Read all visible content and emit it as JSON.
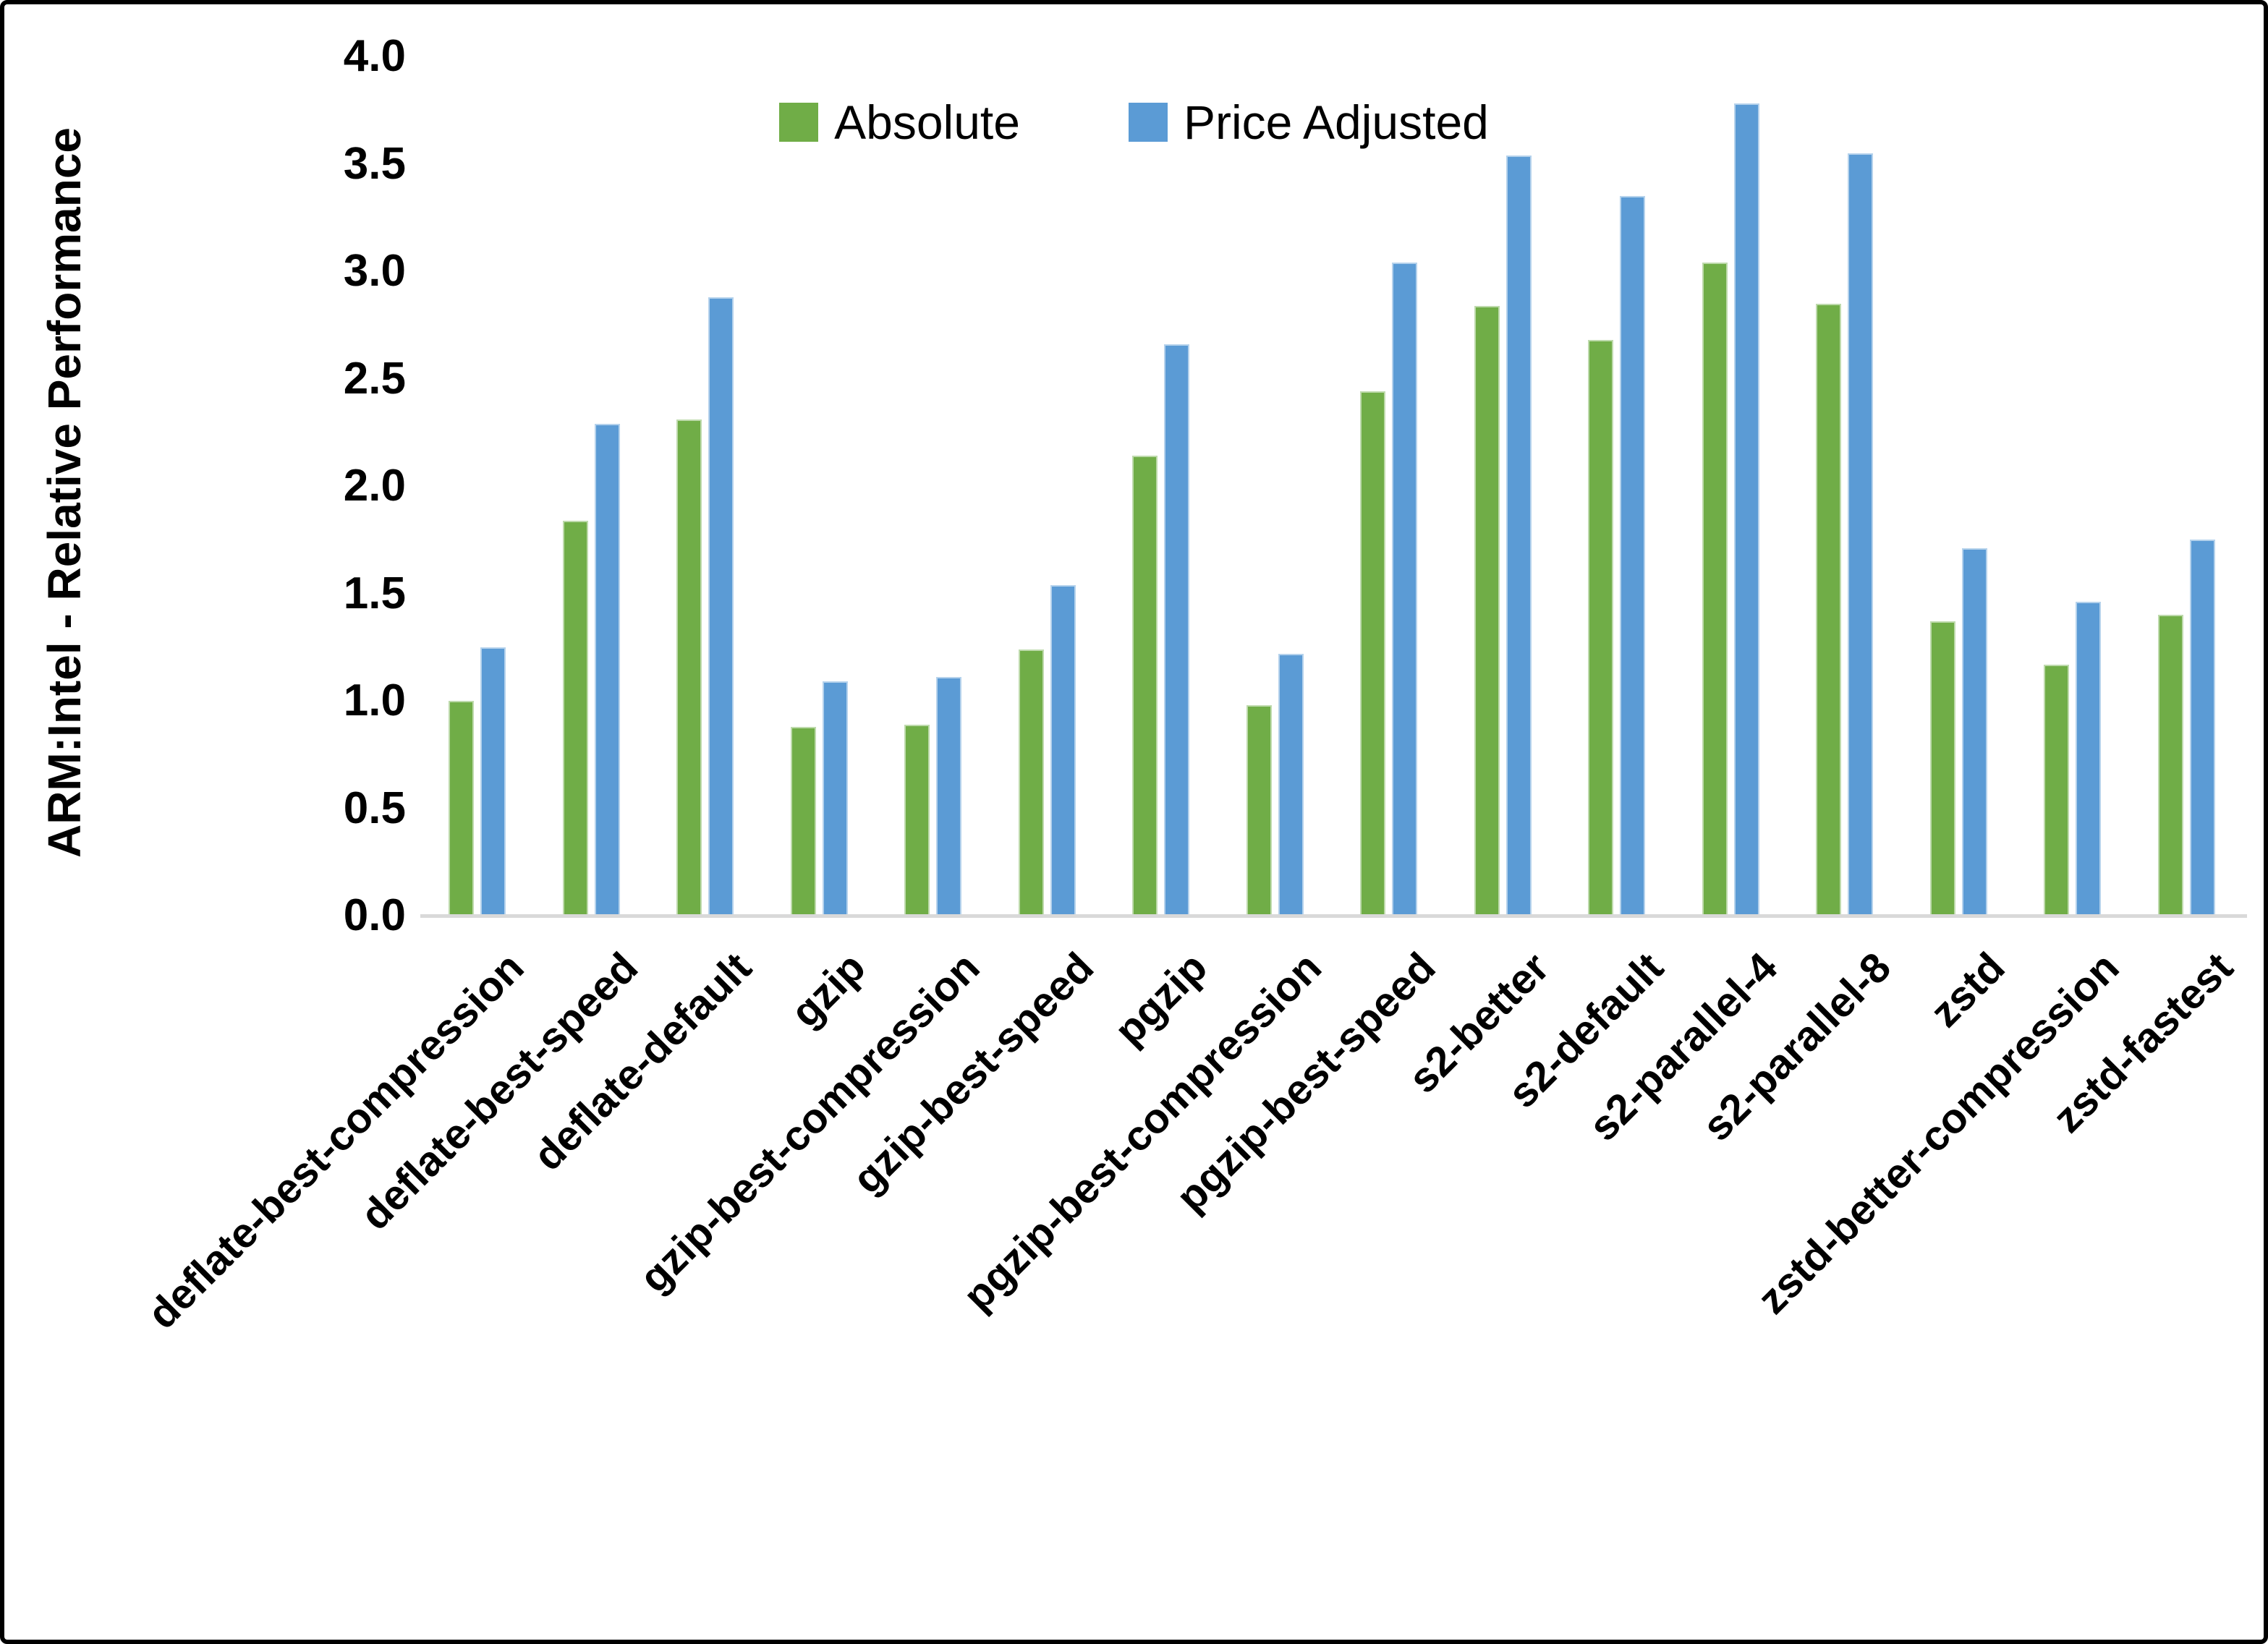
{
  "chart_data": {
    "type": "bar",
    "title": "",
    "ylabel": "ARM:Intel - Relative Performance",
    "xlabel": "",
    "ylim": [
      0,
      4
    ],
    "ytick_step": 0.5,
    "grid": false,
    "legend_position": "top-center",
    "axis_line_color": "#d9d9d9",
    "categories": [
      "deflate-best-compression",
      "deflate-best-speed",
      "deflate-default",
      "gzip",
      "gzip-best-compression",
      "gzip-best-speed",
      "pgzip",
      "pgzip-best-compression",
      "pgzip-best-speed",
      "s2-better",
      "s2-default",
      "s2-parallel-4",
      "s2-parallel-8",
      "zstd",
      "zstd-better-compression",
      "zstd-fastest"
    ],
    "series": [
      {
        "name": "Absolute",
        "color": "#70AD47",
        "values": [
          1.0,
          1.84,
          2.31,
          0.88,
          0.89,
          1.24,
          2.14,
          0.98,
          2.44,
          2.84,
          2.68,
          3.04,
          2.85,
          1.37,
          1.17,
          1.4
        ]
      },
      {
        "name": "Price Adjusted",
        "color": "#5B9BD5",
        "values": [
          1.25,
          2.29,
          2.88,
          1.09,
          1.11,
          1.54,
          2.66,
          1.22,
          3.04,
          3.54,
          3.35,
          3.78,
          3.55,
          1.71,
          1.46,
          1.75
        ]
      }
    ]
  }
}
